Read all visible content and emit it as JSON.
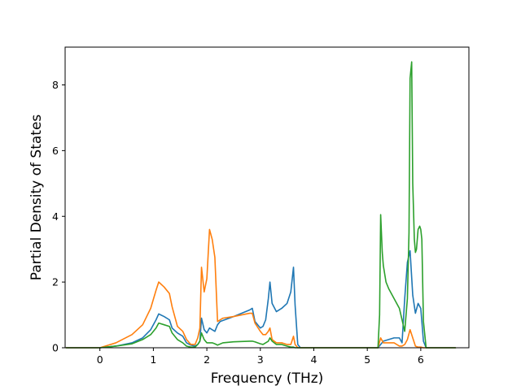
{
  "chart_data": {
    "type": "line",
    "title": "",
    "xlabel": "Frequency (THz)",
    "ylabel": "Partial Density of States",
    "xlim": [
      -0.65,
      6.9
    ],
    "ylim": [
      0,
      9.15
    ],
    "xticks": [
      0,
      1,
      2,
      3,
      4,
      5,
      6
    ],
    "yticks": [
      0,
      2,
      4,
      6,
      8
    ],
    "grid": false,
    "legend": "none",
    "series": [
      {
        "color": "#1f77b4",
        "x": [
          -0.63,
          0.0,
          0.3,
          0.6,
          0.8,
          0.95,
          1.05,
          1.1,
          1.2,
          1.3,
          1.35,
          1.45,
          1.55,
          1.62,
          1.7,
          1.78,
          1.83,
          1.87,
          1.9,
          1.95,
          2.0,
          2.05,
          2.1,
          2.15,
          2.2,
          2.25,
          2.5,
          2.8,
          2.85,
          2.9,
          3.0,
          3.05,
          3.1,
          3.15,
          3.18,
          3.22,
          3.3,
          3.4,
          3.5,
          3.57,
          3.62,
          3.65,
          3.7,
          3.75,
          5.2,
          5.3,
          5.5,
          5.6,
          5.65,
          5.7,
          5.75,
          5.8,
          5.85,
          5.9,
          5.95,
          6.0,
          6.05,
          6.1,
          6.2,
          6.65
        ],
        "y": [
          0,
          0,
          0.05,
          0.15,
          0.3,
          0.55,
          0.85,
          1.03,
          0.95,
          0.85,
          0.6,
          0.45,
          0.35,
          0.15,
          0.08,
          0.05,
          0.1,
          0.2,
          0.9,
          0.55,
          0.45,
          0.6,
          0.55,
          0.5,
          0.7,
          0.8,
          0.95,
          1.15,
          1.2,
          0.8,
          0.6,
          0.65,
          0.85,
          1.5,
          2.0,
          1.35,
          1.1,
          1.2,
          1.35,
          1.7,
          2.45,
          1.3,
          0.1,
          0,
          0,
          0.2,
          0.3,
          0.3,
          0.15,
          1.5,
          2.6,
          2.95,
          1.6,
          1.05,
          1.35,
          1.2,
          0.2,
          0,
          0,
          0
        ]
      },
      {
        "color": "#ff7f0e",
        "x": [
          -0.63,
          0.0,
          0.3,
          0.6,
          0.8,
          0.95,
          1.05,
          1.1,
          1.2,
          1.3,
          1.35,
          1.45,
          1.55,
          1.62,
          1.7,
          1.78,
          1.83,
          1.87,
          1.9,
          1.95,
          2.0,
          2.05,
          2.1,
          2.15,
          2.2,
          2.3,
          2.5,
          2.8,
          2.85,
          2.9,
          3.0,
          3.05,
          3.1,
          3.15,
          3.18,
          3.22,
          3.3,
          3.4,
          3.5,
          3.57,
          3.62,
          3.65,
          3.7,
          3.75,
          5.2,
          5.25,
          5.3,
          5.5,
          5.6,
          5.65,
          5.7,
          5.75,
          5.8,
          5.85,
          5.9,
          5.95,
          6.0,
          6.05,
          6.1,
          6.2,
          6.65
        ],
        "y": [
          0,
          0,
          0.15,
          0.4,
          0.7,
          1.2,
          1.75,
          2.0,
          1.85,
          1.65,
          1.25,
          0.65,
          0.5,
          0.25,
          0.1,
          0.1,
          0.3,
          0.6,
          2.45,
          1.7,
          2.1,
          3.6,
          3.3,
          2.75,
          0.8,
          0.9,
          0.95,
          1.05,
          1.05,
          0.75,
          0.5,
          0.4,
          0.4,
          0.5,
          0.6,
          0.25,
          0.15,
          0.15,
          0.1,
          0.1,
          0.35,
          0.1,
          0,
          0,
          0,
          0.3,
          0.15,
          0.15,
          0.05,
          0.05,
          0.1,
          0.25,
          0.55,
          0.3,
          0.05,
          0.02,
          0.02,
          0,
          0,
          0,
          0
        ]
      },
      {
        "color": "#2ca02c",
        "x": [
          -0.63,
          0.0,
          0.3,
          0.6,
          0.8,
          0.95,
          1.05,
          1.1,
          1.2,
          1.3,
          1.35,
          1.45,
          1.55,
          1.62,
          1.7,
          1.78,
          1.83,
          1.87,
          1.9,
          1.95,
          2.0,
          2.05,
          2.1,
          2.15,
          2.2,
          2.3,
          2.5,
          2.8,
          2.85,
          2.9,
          3.0,
          3.05,
          3.1,
          3.15,
          3.18,
          3.22,
          3.3,
          3.4,
          3.5,
          3.57,
          3.62,
          3.65,
          3.7,
          3.75,
          5.2,
          5.23,
          5.25,
          5.28,
          5.3,
          5.35,
          5.4,
          5.5,
          5.6,
          5.7,
          5.75,
          5.78,
          5.8,
          5.83,
          5.85,
          5.88,
          5.9,
          5.92,
          5.95,
          5.98,
          6.0,
          6.02,
          6.05,
          6.1,
          6.2,
          6.65
        ],
        "y": [
          0,
          0,
          0.05,
          0.12,
          0.25,
          0.4,
          0.6,
          0.75,
          0.7,
          0.65,
          0.45,
          0.25,
          0.15,
          0.05,
          0.02,
          0.02,
          0.1,
          0.2,
          0.45,
          0.25,
          0.15,
          0.15,
          0.15,
          0.12,
          0.08,
          0.15,
          0.18,
          0.2,
          0.2,
          0.18,
          0.12,
          0.1,
          0.15,
          0.2,
          0.3,
          0.2,
          0.1,
          0.1,
          0.05,
          0.02,
          0.02,
          0,
          0,
          0,
          0,
          1.0,
          4.05,
          2.9,
          2.5,
          2.0,
          1.8,
          1.5,
          1.2,
          0.5,
          1.5,
          3.5,
          8.2,
          8.7,
          5.0,
          3.3,
          2.9,
          3.0,
          3.6,
          3.7,
          3.6,
          3.3,
          0.8,
          0,
          0,
          0
        ]
      }
    ]
  }
}
